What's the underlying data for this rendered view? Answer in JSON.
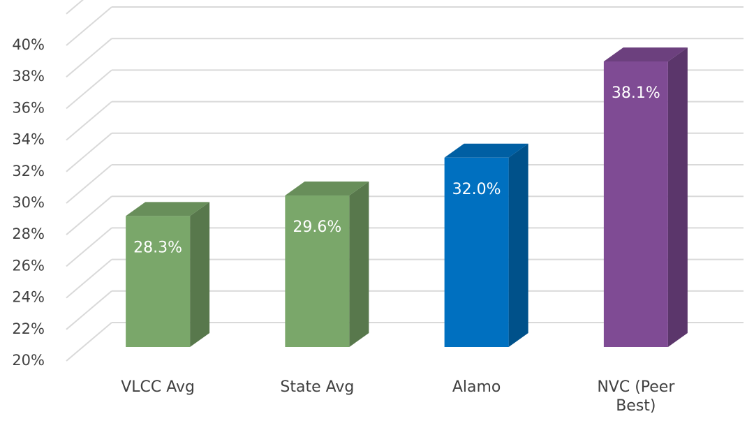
{
  "chart_data": {
    "type": "bar3d",
    "categories": [
      "VLCC Avg",
      "State Avg",
      "Alamo",
      "NVC (Peer Best)"
    ],
    "values": [
      28.3,
      29.6,
      32.0,
      38.1
    ],
    "value_labels": [
      "28.3%",
      "29.6%",
      "32.0%",
      "38.1%"
    ],
    "colors": [
      "#7aa76a",
      "#7aa76a",
      "#0070c0",
      "#7f4b94"
    ],
    "ylim": [
      20,
      42
    ],
    "yticks": [
      {
        "value": 20,
        "label": "20%"
      },
      {
        "value": 22,
        "label": "22%"
      },
      {
        "value": 24,
        "label": "24%"
      },
      {
        "value": 26,
        "label": "26%"
      },
      {
        "value": 28,
        "label": "28%"
      },
      {
        "value": 30,
        "label": "30%"
      },
      {
        "value": 32,
        "label": "32%"
      },
      {
        "value": 34,
        "label": "34%"
      },
      {
        "value": 36,
        "label": "36%"
      },
      {
        "value": 38,
        "label": "38%"
      },
      {
        "value": 40,
        "label": "40%"
      }
    ],
    "grid": true
  }
}
